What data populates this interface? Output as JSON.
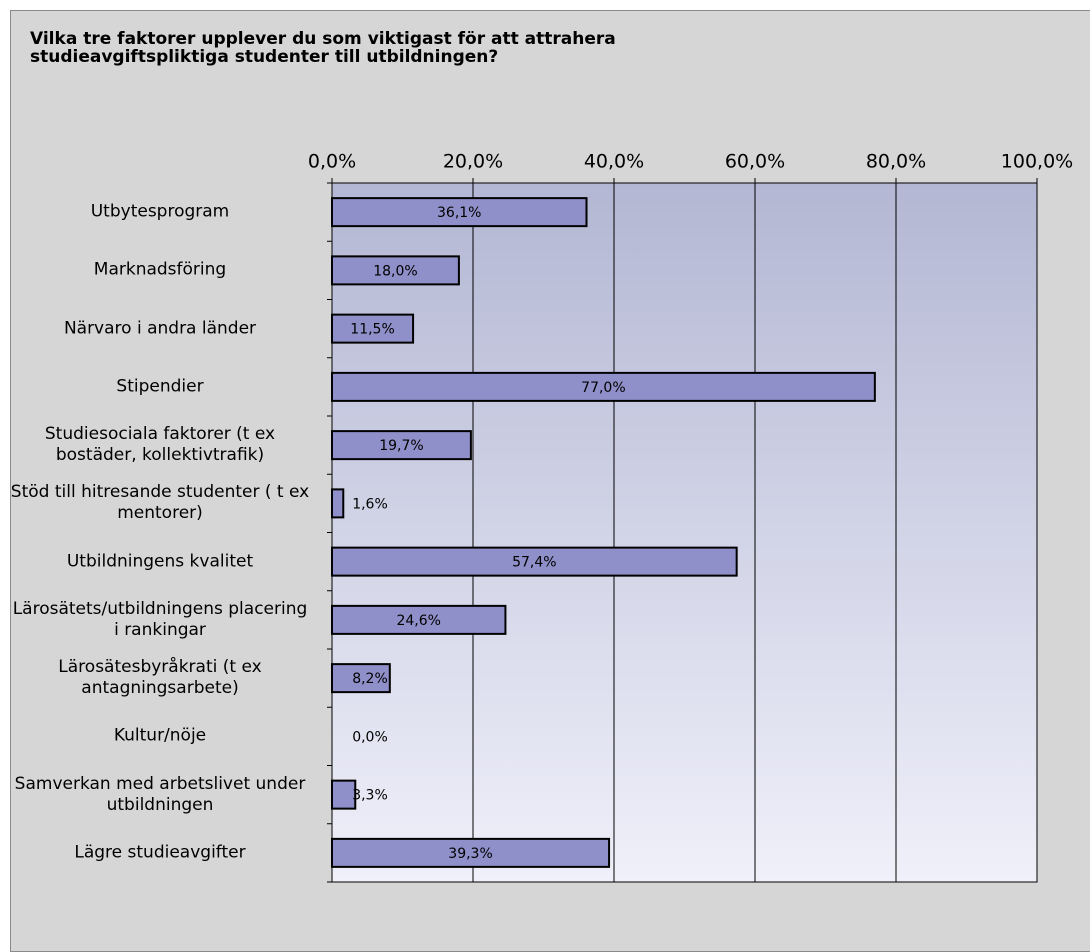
{
  "chart_data": {
    "type": "bar",
    "orientation": "horizontal",
    "title": "Vilka tre faktorer upplever du som viktigast för att attrahera studieavgiftspliktiga studenter till utbildningen?",
    "categories": [
      "Utbytesprogram",
      "Marknadsföring",
      "Närvaro i andra länder",
      "Stipendier",
      "Studiesociala faktorer (t ex bostäder, kollektivtrafik)",
      "Stöd till hitresande studenter ( t ex mentorer)",
      "Utbildningens kvalitet",
      "Lärosätets/utbildningens placering i rankingar",
      "Lärosätesbyråkrati (t ex antagningsarbete)",
      "Kultur/nöje",
      "Samverkan med arbetslivet under utbildningen",
      "Lägre studieavgifter"
    ],
    "values": [
      36.1,
      18.0,
      11.5,
      77.0,
      19.7,
      1.6,
      57.4,
      24.6,
      8.2,
      0.0,
      3.3,
      39.3
    ],
    "value_labels": [
      "36,1%",
      "18,0%",
      "11,5%",
      "77,0%",
      "19,7%",
      "1,6%",
      "57,4%",
      "24,6%",
      "8,2%",
      "0,0%",
      "3,3%",
      "39,3%"
    ],
    "color": "#8f8fc9",
    "xlim": [
      0,
      100
    ],
    "xticks": [
      {
        "value": 0,
        "label": "0,0%"
      },
      {
        "value": 20,
        "label": "20,0%"
      },
      {
        "value": 40,
        "label": "40,0%"
      },
      {
        "value": 60,
        "label": "60,0%"
      },
      {
        "value": 80,
        "label": "80,0%"
      },
      {
        "value": 100,
        "label": "100,0%"
      }
    ],
    "grid": true
  }
}
